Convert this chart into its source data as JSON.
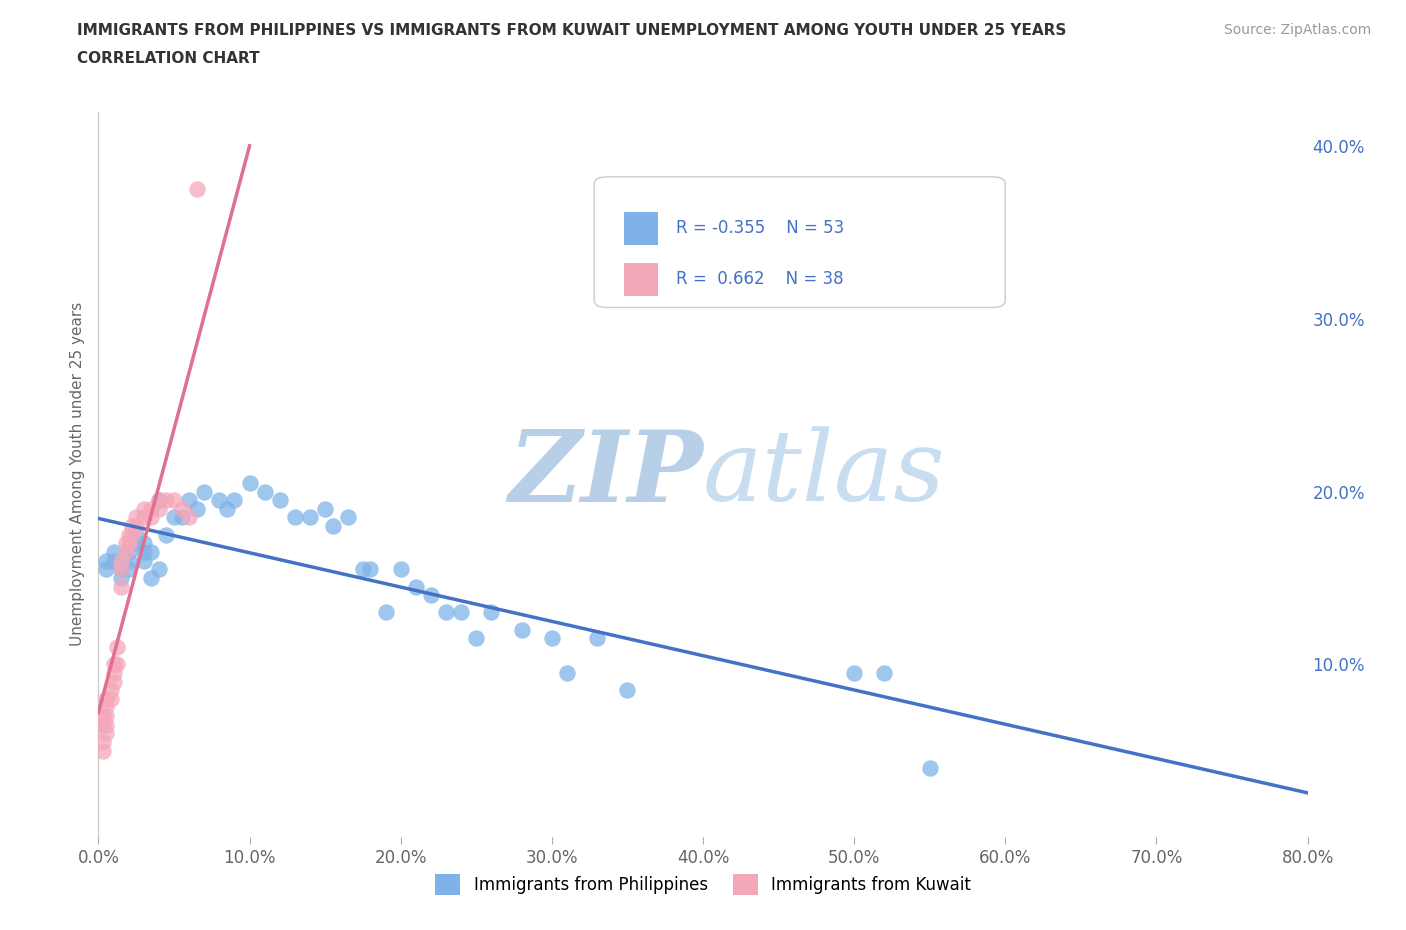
{
  "title_line1": "IMMIGRANTS FROM PHILIPPINES VS IMMIGRANTS FROM KUWAIT UNEMPLOYMENT AMONG YOUTH UNDER 25 YEARS",
  "title_line2": "CORRELATION CHART",
  "source_text": "Source: ZipAtlas.com",
  "ylabel": "Unemployment Among Youth under 25 years",
  "xlim": [
    0.0,
    0.8
  ],
  "ylim": [
    0.0,
    0.42
  ],
  "xticks": [
    0.0,
    0.1,
    0.2,
    0.3,
    0.4,
    0.5,
    0.6,
    0.7,
    0.8
  ],
  "xticklabels": [
    "0.0%",
    "10.0%",
    "20.0%",
    "30.0%",
    "40.0%",
    "50.0%",
    "60.0%",
    "70.0%",
    "80.0%"
  ],
  "yticks_right": [
    0.1,
    0.2,
    0.3,
    0.4
  ],
  "yticklabels_right": [
    "10.0%",
    "20.0%",
    "30.0%",
    "40.0%"
  ],
  "philippines_color": "#7fb3e8",
  "kuwait_color": "#f4a7b9",
  "philippines_line_color": "#4472c4",
  "kuwait_line_color": "#e07090",
  "background_color": "#ffffff",
  "watermark_color": "#cfdff0",
  "legend_r_philippines": "-0.355",
  "legend_n_philippines": "53",
  "legend_r_kuwait": "0.662",
  "legend_n_kuwait": "38",
  "philippines_x": [
    0.005,
    0.005,
    0.01,
    0.01,
    0.015,
    0.015,
    0.02,
    0.02,
    0.02,
    0.025,
    0.025,
    0.03,
    0.03,
    0.03,
    0.035,
    0.035,
    0.04,
    0.04,
    0.045,
    0.05,
    0.055,
    0.06,
    0.065,
    0.07,
    0.08,
    0.085,
    0.09,
    0.1,
    0.11,
    0.12,
    0.13,
    0.14,
    0.15,
    0.155,
    0.165,
    0.175,
    0.18,
    0.19,
    0.2,
    0.21,
    0.22,
    0.23,
    0.24,
    0.25,
    0.26,
    0.28,
    0.3,
    0.31,
    0.33,
    0.35,
    0.5,
    0.52,
    0.55
  ],
  "philippines_y": [
    0.155,
    0.16,
    0.16,
    0.165,
    0.15,
    0.155,
    0.155,
    0.16,
    0.165,
    0.17,
    0.175,
    0.16,
    0.165,
    0.17,
    0.15,
    0.165,
    0.155,
    0.195,
    0.175,
    0.185,
    0.185,
    0.195,
    0.19,
    0.2,
    0.195,
    0.19,
    0.195,
    0.205,
    0.2,
    0.195,
    0.185,
    0.185,
    0.19,
    0.18,
    0.185,
    0.155,
    0.155,
    0.13,
    0.155,
    0.145,
    0.14,
    0.13,
    0.13,
    0.115,
    0.13,
    0.12,
    0.115,
    0.095,
    0.115,
    0.085,
    0.095,
    0.095,
    0.04
  ],
  "kuwait_x": [
    0.003,
    0.003,
    0.003,
    0.003,
    0.005,
    0.005,
    0.005,
    0.005,
    0.005,
    0.008,
    0.008,
    0.01,
    0.01,
    0.01,
    0.012,
    0.012,
    0.015,
    0.015,
    0.015,
    0.018,
    0.018,
    0.02,
    0.02,
    0.022,
    0.022,
    0.025,
    0.025,
    0.03,
    0.03,
    0.035,
    0.035,
    0.04,
    0.04,
    0.045,
    0.05,
    0.055,
    0.06,
    0.065
  ],
  "kuwait_y": [
    0.05,
    0.055,
    0.065,
    0.07,
    0.06,
    0.065,
    0.07,
    0.075,
    0.08,
    0.08,
    0.085,
    0.09,
    0.095,
    0.1,
    0.1,
    0.11,
    0.145,
    0.155,
    0.16,
    0.165,
    0.17,
    0.17,
    0.175,
    0.175,
    0.18,
    0.18,
    0.185,
    0.185,
    0.19,
    0.185,
    0.19,
    0.19,
    0.195,
    0.195,
    0.195,
    0.19,
    0.185,
    0.375
  ]
}
